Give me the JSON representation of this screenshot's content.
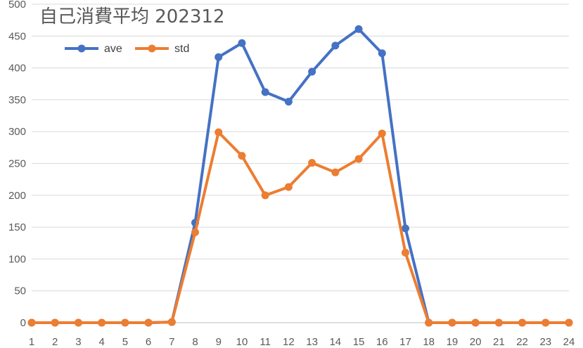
{
  "chart_data": {
    "type": "line",
    "title": "自己消費平均 202312",
    "xlabel": "",
    "ylabel": "",
    "x": [
      "1",
      "2",
      "3",
      "4",
      "5",
      "6",
      "7",
      "8",
      "9",
      "10",
      "11",
      "12",
      "13",
      "14",
      "15",
      "16",
      "17",
      "18",
      "19",
      "20",
      "21",
      "22",
      "23",
      "24"
    ],
    "ylim": [
      0,
      500
    ],
    "yticks": [
      0,
      50,
      100,
      150,
      200,
      250,
      300,
      350,
      400,
      450,
      500
    ],
    "ytick_labels": [
      "0",
      "50",
      "100",
      "150",
      "200",
      "250",
      "300",
      "350",
      "400",
      "450",
      "500"
    ],
    "grid": true,
    "legend_position": "top-left",
    "series": [
      {
        "name": "ave",
        "color": "#4472C4",
        "values": [
          0,
          0,
          0,
          0,
          0,
          0,
          1,
          157,
          417,
          439,
          362,
          347,
          394,
          435,
          461,
          423,
          148,
          0,
          0,
          0,
          0,
          0,
          0,
          0
        ]
      },
      {
        "name": "std",
        "color": "#ED7D31",
        "values": [
          0,
          0,
          0,
          0,
          0,
          0,
          1,
          142,
          299,
          262,
          200,
          213,
          251,
          236,
          257,
          297,
          110,
          0,
          0,
          0,
          0,
          0,
          0,
          0
        ]
      }
    ]
  }
}
